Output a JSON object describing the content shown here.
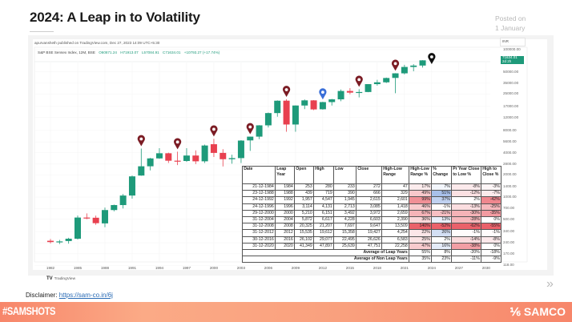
{
  "page": {
    "title": "2024: A Leap in to Volatility",
    "posted_label": "Posted on",
    "posted_date": "1 January"
  },
  "chart_header": {
    "published": "apurvansheth published on TradingView.com, Dec 27, 2023 14:09 UTC+5:30",
    "symbol": "S&P BSE Sensex Index, 12M, BSE",
    "open": "O60871.24",
    "high": "H71913.07",
    "low": "L57084.91",
    "close": "C71634.01",
    "change": "+10793.27 (+17.74%)",
    "currency": "INR",
    "last_price": "71634.01",
    "last_price_sub": "2d 2h",
    "brand": "TradingView"
  },
  "chart_data": {
    "type": "candlestick",
    "title": "",
    "y_scale": "log",
    "ylim": [
      118,
      100000
    ],
    "y_ticks": [
      "100000.00",
      "50000.00",
      "35000.00",
      "25000.00",
      "17000.00",
      "12000.00",
      "8000.00",
      "5600.00",
      "4000.00",
      "2800.00",
      "2000.00",
      "1400.00",
      "1000.00",
      "700.00",
      "500.00",
      "340.00",
      "240.00",
      "170.00",
      "118.00"
    ],
    "x_ticks": [
      "1982",
      "1985",
      "1988",
      "1991",
      "1994",
      "1997",
      "2000",
      "2003",
      "2006",
      "2009",
      "2012",
      "2015",
      "2018",
      "2021",
      "2024",
      "2027",
      "2030"
    ],
    "colors": {
      "up": "#1e9a7a",
      "down": "#e8404f",
      "marker": "#7b1c24",
      "marker_highlight": "#3a6fd8",
      "marker_next": "#111111"
    },
    "candles": [
      [
        1982,
        255,
        270,
        235,
        245
      ],
      [
        1983,
        245,
        262,
        230,
        250
      ],
      [
        1984,
        253,
        280,
        233,
        272
      ],
      [
        1985,
        272,
        560,
        265,
        527
      ],
      [
        1986,
        527,
        600,
        500,
        524
      ],
      [
        1987,
        524,
        560,
        420,
        442
      ],
      [
        1988,
        439,
        719,
        390,
        666
      ],
      [
        1989,
        666,
        790,
        640,
        778
      ],
      [
        1990,
        778,
        1100,
        700,
        1048
      ],
      [
        1991,
        1048,
        1960,
        950,
        1908
      ],
      [
        1992,
        1957,
        4547,
        1945,
        2615
      ],
      [
        1993,
        2615,
        3400,
        2300,
        3346
      ],
      [
        1994,
        3346,
        4600,
        3300,
        3927
      ],
      [
        1995,
        3927,
        4000,
        2900,
        3111
      ],
      [
        1996,
        3114,
        4131,
        2713,
        3085
      ],
      [
        1997,
        3085,
        4600,
        3000,
        3659
      ],
      [
        1998,
        3659,
        4300,
        2800,
        3055
      ],
      [
        1999,
        3055,
        5150,
        2900,
        5005
      ],
      [
        2000,
        5210,
        6151,
        3492,
        3972
      ],
      [
        2001,
        3972,
        4460,
        2600,
        3262
      ],
      [
        2002,
        3262,
        3760,
        2830,
        3377
      ],
      [
        2003,
        3377,
        5920,
        2900,
        5839
      ],
      [
        2004,
        5872,
        6617,
        4228,
        6603
      ],
      [
        2005,
        6603,
        9440,
        6100,
        9398
      ],
      [
        2006,
        9398,
        14000,
        8800,
        13787
      ],
      [
        2007,
        13787,
        20500,
        12300,
        20287
      ],
      [
        2008,
        20325,
        21207,
        7697,
        9647
      ],
      [
        2009,
        9647,
        17530,
        7700,
        17465
      ],
      [
        2010,
        17465,
        21100,
        15600,
        20509
      ],
      [
        2011,
        20509,
        20660,
        15100,
        15455
      ],
      [
        2012,
        15535,
        19612,
        15358,
        19427
      ],
      [
        2013,
        19427,
        21480,
        17450,
        21171
      ],
      [
        2014,
        21171,
        28800,
        19960,
        27499
      ],
      [
        2015,
        27499,
        30020,
        24830,
        26118
      ],
      [
        2016,
        26102,
        29077,
        22495,
        26626
      ],
      [
        2017,
        26626,
        34140,
        26450,
        34057
      ],
      [
        2018,
        34057,
        38990,
        32480,
        36068
      ],
      [
        2019,
        36068,
        41810,
        35290,
        41253
      ],
      [
        2020,
        41349,
        47897,
        25639,
        47751
      ],
      [
        2021,
        47751,
        62250,
        46160,
        58254
      ],
      [
        2022,
        58254,
        63580,
        50920,
        60841
      ],
      [
        2023,
        60871,
        71913,
        57085,
        71634
      ]
    ],
    "markers": [
      [
        1992,
        "leap"
      ],
      [
        1996,
        "leap"
      ],
      [
        2000,
        "leap"
      ],
      [
        2004,
        "leap"
      ],
      [
        2008,
        "leap"
      ],
      [
        2012,
        "highlight"
      ],
      [
        2016,
        "leap"
      ],
      [
        2020,
        "leap"
      ],
      [
        2024,
        "next"
      ]
    ]
  },
  "table": {
    "headers": [
      "Date",
      "Leap Year",
      "Open",
      "High",
      "Low",
      "Close",
      "High-Low Range",
      "High-Low Range %",
      "% Change",
      "Pr Year Close to Low %",
      "High to Close %"
    ],
    "rows": [
      [
        "21-12-1984",
        "1984",
        "253",
        "280",
        "233",
        "272",
        "47",
        "17%",
        "7%",
        "-8%",
        "-3%"
      ],
      [
        "23-12-1988",
        "1988",
        "439",
        "719",
        "390",
        "666",
        "329",
        "49%",
        "51%",
        "-12%",
        "-7%"
      ],
      [
        "24-12-1992",
        "1992",
        "1,957",
        "4,547",
        "1,945",
        "2,615",
        "2,601",
        "99%",
        "37%",
        "2%",
        "-42%"
      ],
      [
        "24-12-1996",
        "1996",
        "3,114",
        "4,131",
        "2,713",
        "3,085",
        "1,418",
        "46%",
        "-1%",
        "-13%",
        "-25%"
      ],
      [
        "29-12-2000",
        "2000",
        "5,210",
        "6,151",
        "3,492",
        "3,972",
        "2,659",
        "67%",
        "-21%",
        "-30%",
        "-35%"
      ],
      [
        "31-12-2004",
        "2004",
        "5,872",
        "6,617",
        "4,228",
        "6,603",
        "2,390",
        "36%",
        "13%",
        "-28%",
        "0%"
      ],
      [
        "31-12-2008",
        "2008",
        "20,325",
        "21,207",
        "7,697",
        "9,647",
        "13,509",
        "140%",
        "-52%",
        "-62%",
        "-55%"
      ],
      [
        "31-12-2012",
        "2012",
        "15,535",
        "19,612",
        "15,358",
        "19,427",
        "4,254",
        "22%",
        "26%",
        "-1%",
        "-1%"
      ],
      [
        "30-12-2016",
        "2016",
        "26,102",
        "29,077",
        "22,495",
        "26,626",
        "6,583",
        "25%",
        "2%",
        "-14%",
        "-8%"
      ],
      [
        "31-12-2020",
        "2020",
        "41,349",
        "47,897",
        "25,639",
        "47,751",
        "22,258",
        "47%",
        "16%",
        "-38%",
        "0%"
      ]
    ],
    "averages": [
      {
        "label": "Average of Leap Years",
        "values": [
          "55%",
          "8%",
          "-20%",
          "-18%"
        ]
      },
      {
        "label": "Average of Non Leap Years",
        "values": [
          "35%",
          "23%",
          "-11%",
          "-9%"
        ]
      }
    ]
  },
  "footer": {
    "disclaimer_label": "Disclaimer:",
    "disclaimer_link": "https://sam-co.in/6j",
    "hashtag": "#SAMSHOTS",
    "logo": "SAMCO",
    "next_icon": "double-chevron-right"
  }
}
